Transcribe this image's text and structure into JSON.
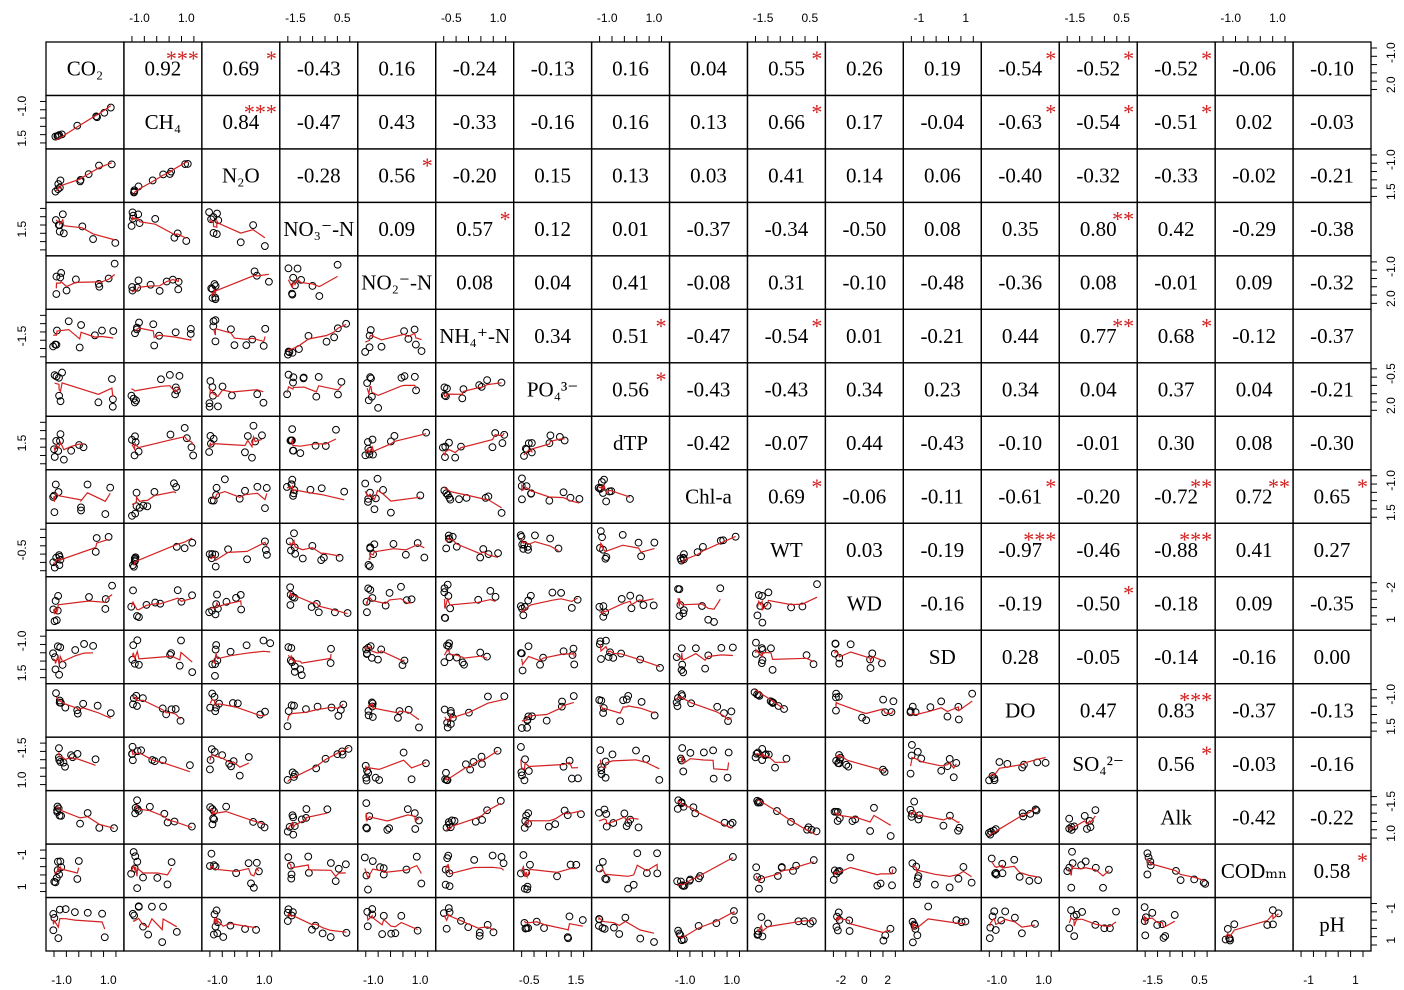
{
  "chart_data": {
    "type": "scatter-matrix",
    "title": "",
    "variables": [
      "CO₂",
      "CH₄",
      "N₂O",
      "NO₃⁻-N",
      "NO₂⁻-N",
      "NH₄⁺-N",
      "PO₄³⁻",
      "dTP",
      "Chl-a",
      "WT",
      "WD",
      "SD",
      "DO",
      "SO₄²⁻",
      "Alk",
      "CODₘₙ",
      "pH"
    ],
    "correlations": [
      [
        "0.92",
        "0.69",
        "-0.43",
        "0.16",
        "-0.24",
        "-0.13",
        "0.16",
        "0.04",
        "0.55",
        "0.26",
        "0.19",
        "-0.54",
        "-0.52",
        "-0.52",
        "-0.06",
        "-0.10"
      ],
      [
        "0.84",
        "-0.47",
        "0.43",
        "-0.33",
        "-0.16",
        "0.16",
        "0.13",
        "0.66",
        "0.17",
        "-0.04",
        "-0.63",
        "-0.54",
        "-0.51",
        "0.02",
        "-0.03"
      ],
      [
        "-0.28",
        "0.56",
        "-0.20",
        "0.15",
        "0.13",
        "0.03",
        "0.41",
        "0.14",
        "0.06",
        "-0.40",
        "-0.32",
        "-0.33",
        "-0.02",
        "-0.21"
      ],
      [
        "0.09",
        "0.57",
        "0.12",
        "0.01",
        "-0.37",
        "-0.34",
        "-0.50",
        "0.08",
        "0.35",
        "0.80",
        "0.42",
        "-0.29",
        "-0.38"
      ],
      [
        "0.08",
        "0.04",
        "0.41",
        "-0.08",
        "0.31",
        "-0.10",
        "-0.48",
        "-0.36",
        "0.08",
        "-0.01",
        "0.09",
        "-0.32"
      ],
      [
        "0.34",
        "0.51",
        "-0.47",
        "-0.54",
        "0.01",
        "-0.21",
        "0.44",
        "0.77",
        "0.68",
        "-0.12",
        "-0.37"
      ],
      [
        "0.56",
        "-0.43",
        "-0.43",
        "0.34",
        "0.23",
        "0.34",
        "0.04",
        "0.37",
        "0.04",
        "-0.21"
      ],
      [
        "-0.42",
        "-0.07",
        "0.44",
        "-0.43",
        "-0.10",
        "-0.01",
        "0.30",
        "0.08",
        "-0.30"
      ],
      [
        "0.69",
        "-0.06",
        "-0.11",
        "-0.61",
        "-0.20",
        "-0.72",
        "0.72",
        "0.65"
      ],
      [
        "0.03",
        "-0.19",
        "-0.97",
        "-0.46",
        "-0.88",
        "0.41",
        "0.27"
      ],
      [
        "-0.16",
        "-0.19",
        "-0.50",
        "-0.18",
        "0.09",
        "-0.35"
      ],
      [
        "0.28",
        "-0.05",
        "-0.14",
        "-0.16",
        "0.00"
      ],
      [
        "0.47",
        "0.83",
        "-0.37",
        "-0.13"
      ],
      [
        "0.56",
        "-0.03",
        "-0.16"
      ],
      [
        "-0.42",
        "-0.22"
      ],
      [
        "0.58"
      ],
      []
    ],
    "significance": [
      [
        "***",
        "*",
        "",
        "",
        "",
        "",
        "",
        "",
        "*",
        "",
        "",
        "*",
        "*",
        "*",
        "",
        ""
      ],
      [
        "***",
        "",
        "",
        "",
        "",
        "",
        "",
        "*",
        "",
        "",
        "*",
        "*",
        "*",
        "",
        ""
      ],
      [
        "",
        "*",
        "",
        "",
        "",
        "",
        "",
        "",
        "",
        "",
        "",
        "",
        "",
        ""
      ],
      [
        "",
        "*",
        "",
        "",
        "",
        "",
        "",
        "",
        "",
        "**",
        "",
        "",
        ""
      ],
      [
        "",
        "",
        "",
        "",
        "",
        "",
        "",
        "",
        "",
        "",
        "",
        ""
      ],
      [
        "",
        "*",
        "",
        "*",
        "",
        "",
        "",
        "**",
        "*",
        "",
        ""
      ],
      [
        "*",
        "",
        "",
        "",
        "",
        "",
        "",
        "",
        "",
        ""
      ],
      [
        "",
        "",
        "",
        "",
        "",
        "",
        "",
        "",
        ""
      ],
      [
        "*",
        "",
        "",
        "*",
        "",
        "**",
        "**",
        "*"
      ],
      [
        "",
        "",
        "***",
        "",
        "***",
        "",
        ""
      ],
      [
        "",
        "",
        "*",
        "",
        "",
        ""
      ],
      [
        "",
        "",
        "",
        "",
        ""
      ],
      [
        "",
        "***",
        "",
        ""
      ],
      [
        "*",
        "",
        ""
      ],
      [
        "",
        ""
      ],
      [
        "*"
      ],
      []
    ],
    "top_ticks": [
      [
        "-1.0",
        "1.0"
      ],
      [
        "-1.5",
        "0.5"
      ],
      [
        "-0.5",
        "1.0"
      ],
      [
        "-1.0",
        "1.0"
      ],
      [
        "-1.5",
        "0.5"
      ],
      [
        "-1",
        "1"
      ],
      [
        "-1.5",
        "0.5"
      ],
      [
        "-1.0",
        "1.0"
      ]
    ],
    "bottom_ticks": [
      [
        "-1.0",
        "1.0"
      ],
      [
        "-1.0",
        "1.0"
      ],
      [
        "-1.0",
        "1.0"
      ],
      [
        "-0.5",
        "1.5"
      ],
      [
        "-1.0",
        "1.0"
      ],
      [
        "-2",
        "0",
        "2"
      ],
      [
        "-1.0",
        "1.0"
      ],
      [
        "-1.5",
        "0.5"
      ],
      [
        "-1",
        "1"
      ]
    ],
    "left_ticks": [
      [
        "1.5",
        "-1.0"
      ],
      [
        "1.5"
      ],
      [
        "-1.5"
      ],
      [
        "1.5"
      ],
      [
        "-0.5"
      ],
      [
        "1.5",
        "-1.0"
      ],
      [
        "1.0",
        "-1.5"
      ],
      [
        "1",
        "-1"
      ],
      [
        "1.5"
      ],
      [
        "-1.5"
      ],
      [
        "1.5",
        "-1.0"
      ]
    ],
    "right_ticks": [
      [
        "2.0",
        "-1.0"
      ],
      [
        "1.5",
        "-1.0"
      ],
      [
        "2.0",
        "-1.0"
      ],
      [
        "2.0",
        "-0.5"
      ],
      [
        "1.5",
        "-1.0"
      ],
      [
        "1",
        "-2"
      ],
      [
        "1.5",
        "-1.0"
      ],
      [
        "1.0",
        "-1.5"
      ],
      [
        "1",
        "-1"
      ]
    ],
    "scatter_seed": 7,
    "line_color": "#d42020",
    "star_color": "#d42020",
    "grid": false
  }
}
